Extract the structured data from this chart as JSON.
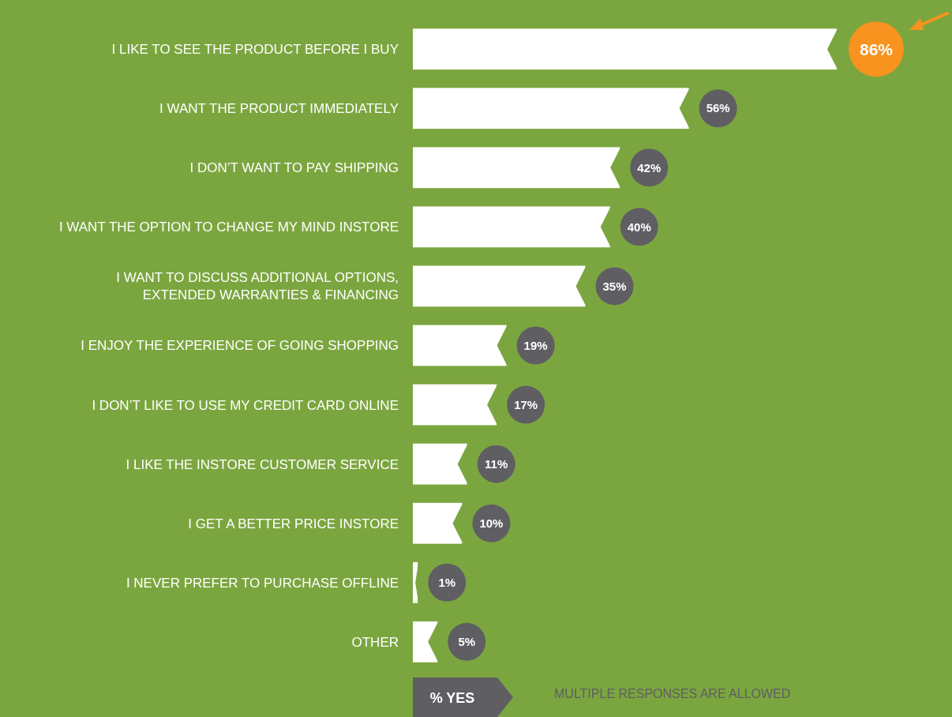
{
  "chart_data": {
    "type": "bar",
    "orientation": "horizontal",
    "categories": [
      "I LIKE TO SEE THE PRODUCT BEFORE I BUY",
      "I WANT THE PRODUCT IMMEDIATELY",
      "I DON’T WANT TO PAY SHIPPING",
      "I WANT THE OPTION TO CHANGE MY MIND INSTORE",
      "I WANT TO DISCUSS ADDITIONAL OPTIONS, EXTENDED WARRANTIES & FINANCING",
      "I ENJOY THE EXPERIENCE OF GOING SHOPPING",
      "I DON’T LIKE TO USE MY CREDIT CARD ONLINE",
      "I LIKE THE INSTORE CUSTOMER SERVICE",
      "I GET A BETTER PRICE INSTORE",
      "I NEVER PREFER TO PURCHASE OFFLINE",
      "OTHER"
    ],
    "values": [
      86,
      56,
      42,
      40,
      35,
      19,
      17,
      11,
      10,
      1,
      5
    ],
    "value_labels": [
      "86%",
      "56%",
      "42%",
      "40%",
      "35%",
      "19%",
      "17%",
      "11%",
      "10%",
      "1%",
      "5%"
    ],
    "color": "#ffffff",
    "xlabel": "% YES",
    "annotations": [
      "MULTIPLE RESPONSES ARE ALLOWED"
    ]
  }
}
